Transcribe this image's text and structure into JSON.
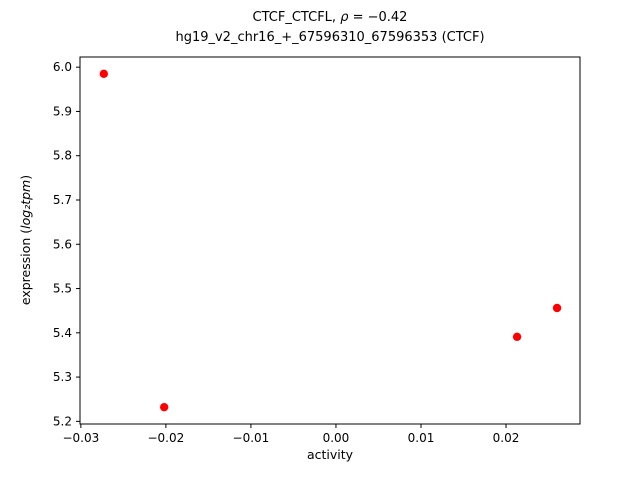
{
  "chart_data": {
    "type": "scatter",
    "title": "CTCF_CTCFL, ρ = −0.42",
    "title_parts": {
      "prefix": "CTCF_CTCFL, ",
      "rho": "ρ",
      "rest": " = −0.42"
    },
    "subtitle": "hg19_v2_chr16_+_67596310_67596353 (CTCF)",
    "xlabel": "activity",
    "ylabel": "expression (log₂tpm)",
    "ylabel_parts": {
      "prefix": "expression (",
      "math": "log₂tpm",
      "suffix": ")"
    },
    "points": [
      {
        "x": -0.0273,
        "y": 5.985
      },
      {
        "x": -0.0202,
        "y": 5.232
      },
      {
        "x": 0.0213,
        "y": 5.391
      },
      {
        "x": 0.026,
        "y": 5.456
      }
    ],
    "marker_color": "#ff0000",
    "marker_radius_px": 4.2,
    "axis_color": "#000000",
    "xlim": [
      -0.0301,
      0.0287
    ],
    "ylim": [
      5.194,
      6.023
    ],
    "xticks": [
      -0.03,
      -0.02,
      -0.01,
      0.0,
      0.01,
      0.02
    ],
    "xtick_labels": [
      "−0.03",
      "−0.02",
      "−0.01",
      "0.00",
      "0.01",
      "0.02"
    ],
    "yticks": [
      5.2,
      5.3,
      5.4,
      5.5,
      5.6,
      5.7,
      5.8,
      5.9,
      6.0
    ],
    "ytick_labels": [
      "5.2",
      "5.3",
      "5.4",
      "5.5",
      "5.6",
      "5.7",
      "5.8",
      "5.9",
      "6.0"
    ],
    "grid": false,
    "legend": "none"
  }
}
